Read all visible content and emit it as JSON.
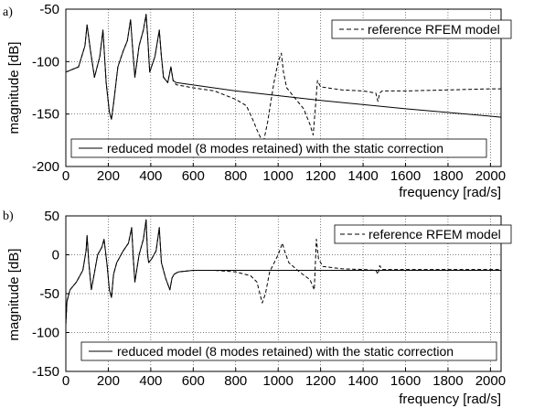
{
  "chart_data": [
    {
      "panel_label": "a)",
      "type": "line",
      "xlabel": "frequency [rad/s]",
      "ylabel": "magnitude [dB]",
      "xlim": [
        0,
        2050
      ],
      "ylim": [
        -200,
        -50
      ],
      "x_ticks": [
        0,
        200,
        400,
        600,
        800,
        1000,
        1200,
        1400,
        1600,
        1800,
        2000
      ],
      "y_ticks": [
        -50,
        -100,
        -150,
        -200
      ],
      "grid": true,
      "legend_top": "reference RFEM model",
      "legend_bottom": "reduced model (8 modes retained) with the static correction",
      "series": [
        {
          "name": "reference RFEM model",
          "style": "dashed",
          "x": [
            0,
            60,
            90,
            100,
            115,
            135,
            160,
            175,
            190,
            205,
            215,
            225,
            245,
            270,
            290,
            305,
            315,
            325,
            345,
            365,
            378,
            385,
            395,
            420,
            440,
            450,
            460,
            480,
            495,
            505,
            520,
            600,
            700,
            800,
            850,
            880,
            900,
            930,
            950,
            980,
            1000,
            1015,
            1025,
            1040,
            1080,
            1120,
            1150,
            1165,
            1175,
            1185,
            1200,
            1300,
            1400,
            1460,
            1470,
            1478,
            1490,
            1600,
            1800,
            2000,
            2050
          ],
          "y": [
            -110,
            -105,
            -85,
            -65,
            -88,
            -115,
            -95,
            -70,
            -120,
            -148,
            -155,
            -140,
            -105,
            -90,
            -80,
            -60,
            -88,
            -115,
            -85,
            -70,
            -55,
            -75,
            -110,
            -95,
            -70,
            -95,
            -115,
            -120,
            -105,
            -118,
            -122,
            -125,
            -128,
            -136,
            -142,
            -155,
            -165,
            -178,
            -158,
            -120,
            -100,
            -92,
            -110,
            -125,
            -135,
            -145,
            -160,
            -170,
            -145,
            -118,
            -124,
            -127,
            -128,
            -130,
            -138,
            -130,
            -128,
            -128,
            -127,
            -126,
            -126
          ]
        },
        {
          "name": "reduced model (8 modes retained) with the static correction",
          "style": "solid",
          "x": [
            0,
            60,
            90,
            100,
            115,
            135,
            160,
            175,
            190,
            205,
            215,
            225,
            245,
            270,
            290,
            305,
            315,
            325,
            345,
            365,
            378,
            385,
            395,
            420,
            440,
            450,
            460,
            480,
            495,
            505,
            520,
            800,
            1200,
            1600,
            2000,
            2050
          ],
          "y": [
            -110,
            -105,
            -85,
            -65,
            -88,
            -115,
            -95,
            -70,
            -120,
            -148,
            -155,
            -140,
            -105,
            -90,
            -80,
            -60,
            -88,
            -115,
            -85,
            -70,
            -55,
            -75,
            -110,
            -95,
            -70,
            -95,
            -115,
            -120,
            -105,
            -118,
            -120,
            -128,
            -137,
            -145,
            -152,
            -153
          ]
        }
      ]
    },
    {
      "panel_label": "b)",
      "type": "line",
      "xlabel": "frequency [rad/s]",
      "ylabel": "magnitude [dB]",
      "xlim": [
        0,
        2050
      ],
      "ylim": [
        -150,
        50
      ],
      "x_ticks": [
        0,
        200,
        400,
        600,
        800,
        1000,
        1200,
        1400,
        1600,
        1800,
        2000
      ],
      "y_ticks": [
        50,
        0,
        -50,
        -100,
        -150
      ],
      "grid": true,
      "legend_top": "reference RFEM model",
      "legend_bottom": "reduced model (8 modes retained) with the static correction",
      "series": [
        {
          "name": "reference RFEM model",
          "style": "dashed",
          "x": [
            0,
            5,
            20,
            50,
            80,
            95,
            100,
            108,
            120,
            150,
            170,
            180,
            195,
            205,
            215,
            225,
            240,
            270,
            295,
            310,
            318,
            325,
            345,
            365,
            378,
            385,
            390,
            405,
            425,
            440,
            450,
            470,
            490,
            500,
            510,
            530,
            600,
            700,
            800,
            870,
            900,
            925,
            940,
            960,
            1000,
            1020,
            1030,
            1050,
            1100,
            1150,
            1170,
            1180,
            1190,
            1210,
            1300,
            1400,
            1460,
            1470,
            1478,
            1490,
            1600,
            1800,
            2000,
            2050
          ],
          "y": [
            -90,
            -60,
            -45,
            -35,
            -20,
            5,
            25,
            -10,
            -45,
            0,
            10,
            20,
            -15,
            -45,
            -55,
            -25,
            -10,
            5,
            15,
            35,
            -5,
            -35,
            0,
            20,
            45,
            0,
            -10,
            -5,
            5,
            35,
            -10,
            -30,
            -45,
            -30,
            -25,
            -22,
            -20,
            -20,
            -22,
            -27,
            -35,
            -62,
            -50,
            -22,
            0,
            15,
            5,
            -10,
            -22,
            -32,
            -45,
            20,
            -5,
            -15,
            -18,
            -19,
            -20,
            -25,
            -14,
            -19,
            -19,
            -19,
            -19,
            -19
          ]
        },
        {
          "name": "reduced model (8 modes retained) with the static correction",
          "style": "solid",
          "x": [
            0,
            5,
            20,
            50,
            80,
            95,
            100,
            108,
            120,
            150,
            170,
            180,
            195,
            205,
            215,
            225,
            240,
            270,
            295,
            310,
            318,
            325,
            345,
            365,
            378,
            385,
            390,
            405,
            425,
            440,
            450,
            470,
            490,
            500,
            510,
            530,
            600,
            800,
            1200,
            1600,
            2000,
            2050
          ],
          "y": [
            -90,
            -60,
            -45,
            -35,
            -20,
            5,
            25,
            -10,
            -45,
            0,
            10,
            20,
            -15,
            -45,
            -55,
            -25,
            -10,
            5,
            15,
            35,
            -5,
            -35,
            0,
            20,
            45,
            0,
            -10,
            -5,
            5,
            35,
            -10,
            -30,
            -45,
            -30,
            -25,
            -22,
            -20,
            -20,
            -20,
            -20,
            -20,
            -20
          ]
        }
      ]
    }
  ]
}
